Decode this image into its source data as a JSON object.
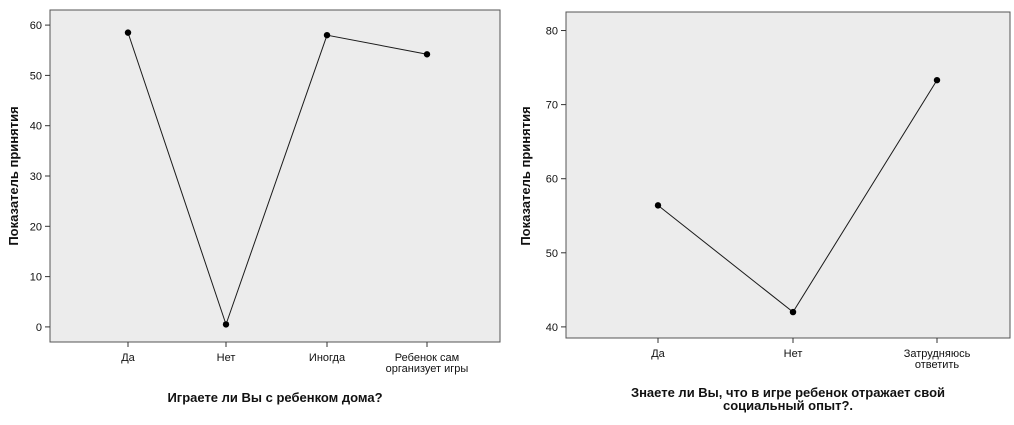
{
  "chart_data": [
    {
      "type": "line",
      "categories": [
        "Да",
        "Нет",
        "Иногда",
        "Ребенок сам\nорганизует игры"
      ],
      "values": [
        58.5,
        0.5,
        58,
        54.2
      ],
      "xlabel": "Играете ли Вы с ребенком дома?",
      "ylabel": "Показатель принятия",
      "ylim": [
        -3,
        63
      ],
      "yticks": [
        0,
        10,
        20,
        30,
        40,
        50,
        60
      ],
      "grid": false,
      "background": "#ececec",
      "line_color": "#1a1a1a"
    },
    {
      "type": "line",
      "categories": [
        "Да",
        "Нет",
        "Затрудняюсь\nответить"
      ],
      "values": [
        56.4,
        42,
        73.3
      ],
      "xlabel": "Знаете ли Вы, что в игре ребенок отражает свой\nсоциальный опыт?.",
      "ylabel": "Показатель принятия",
      "ylim": [
        38.5,
        82.5
      ],
      "yticks": [
        40,
        50,
        60,
        70,
        80
      ],
      "grid": false,
      "background": "#ececec",
      "line_color": "#1a1a1a"
    }
  ]
}
